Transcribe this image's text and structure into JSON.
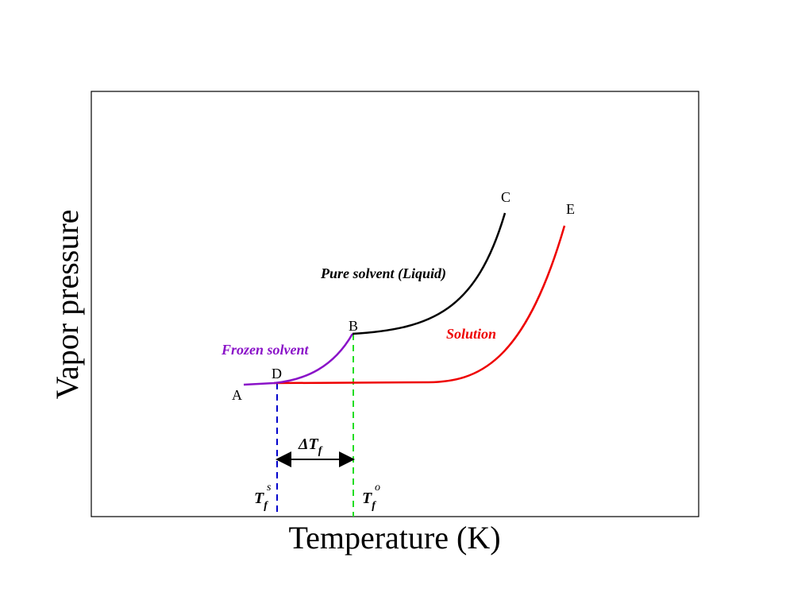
{
  "axes": {
    "x_label": "Temperature (K)",
    "y_label": "Vapor pressure"
  },
  "points": {
    "A": "A",
    "B": "B",
    "C": "C",
    "D": "D",
    "E": "E"
  },
  "curves": {
    "liquid": {
      "label": "Pure solvent (Liquid)",
      "color": "#000000"
    },
    "frozen": {
      "label": "Frozen solvent",
      "color": "#8a12c8"
    },
    "solution": {
      "label": "Solution",
      "color": "#ee0000"
    }
  },
  "markers": {
    "delta": {
      "symbol": "ΔT",
      "sub": "f"
    },
    "tf_solution": {
      "symbol": "T",
      "sub": "f",
      "sup": "s",
      "color": "#0000cc"
    },
    "tf_pure": {
      "symbol": "T",
      "sub": "f",
      "sup": "o",
      "color": "#22dd22"
    }
  }
}
